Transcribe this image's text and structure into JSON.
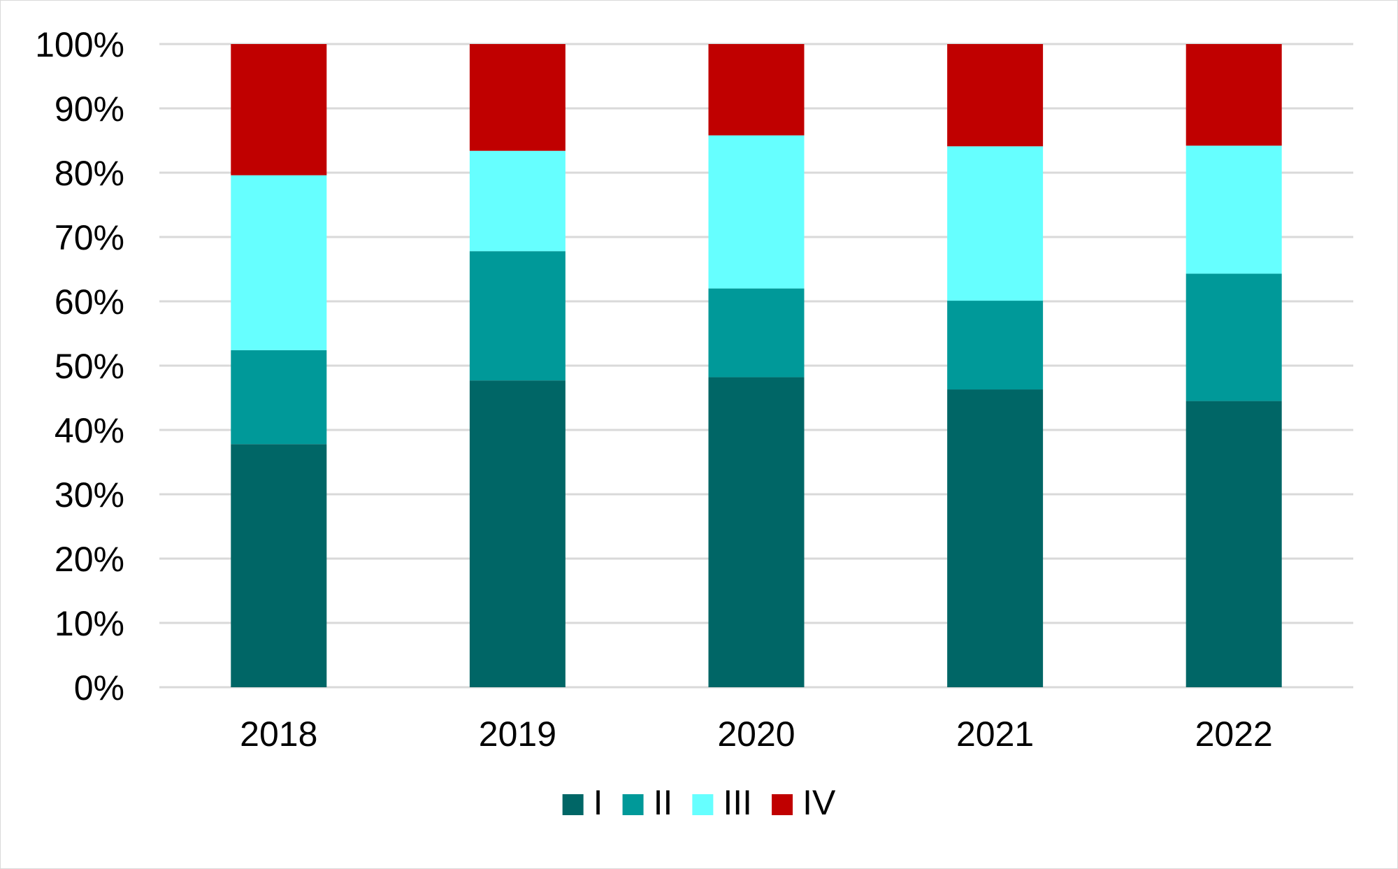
{
  "chart_data": {
    "type": "bar",
    "stacked": true,
    "percent": true,
    "title": "",
    "xlabel": "",
    "ylabel": "",
    "categories": [
      "2018",
      "2019",
      "2020",
      "2021",
      "2022"
    ],
    "series": [
      {
        "name": "I",
        "color": "#006666",
        "values": [
          37.8,
          47.7,
          48.2,
          46.3,
          44.5
        ]
      },
      {
        "name": "II",
        "color": "#009999",
        "values": [
          14.6,
          20.1,
          13.8,
          13.8,
          19.8
        ]
      },
      {
        "name": "III",
        "color": "#66FFFF",
        "values": [
          27.2,
          15.6,
          23.8,
          24.0,
          19.9
        ]
      },
      {
        "name": "IV",
        "color": "#C00000",
        "values": [
          20.4,
          16.6,
          14.2,
          15.9,
          15.8
        ]
      }
    ],
    "ylim": [
      0,
      100
    ],
    "yticks": [
      "0%",
      "10%",
      "20%",
      "30%",
      "40%",
      "50%",
      "60%",
      "70%",
      "80%",
      "90%",
      "100%"
    ],
    "grid": true,
    "legend": "bottom"
  }
}
